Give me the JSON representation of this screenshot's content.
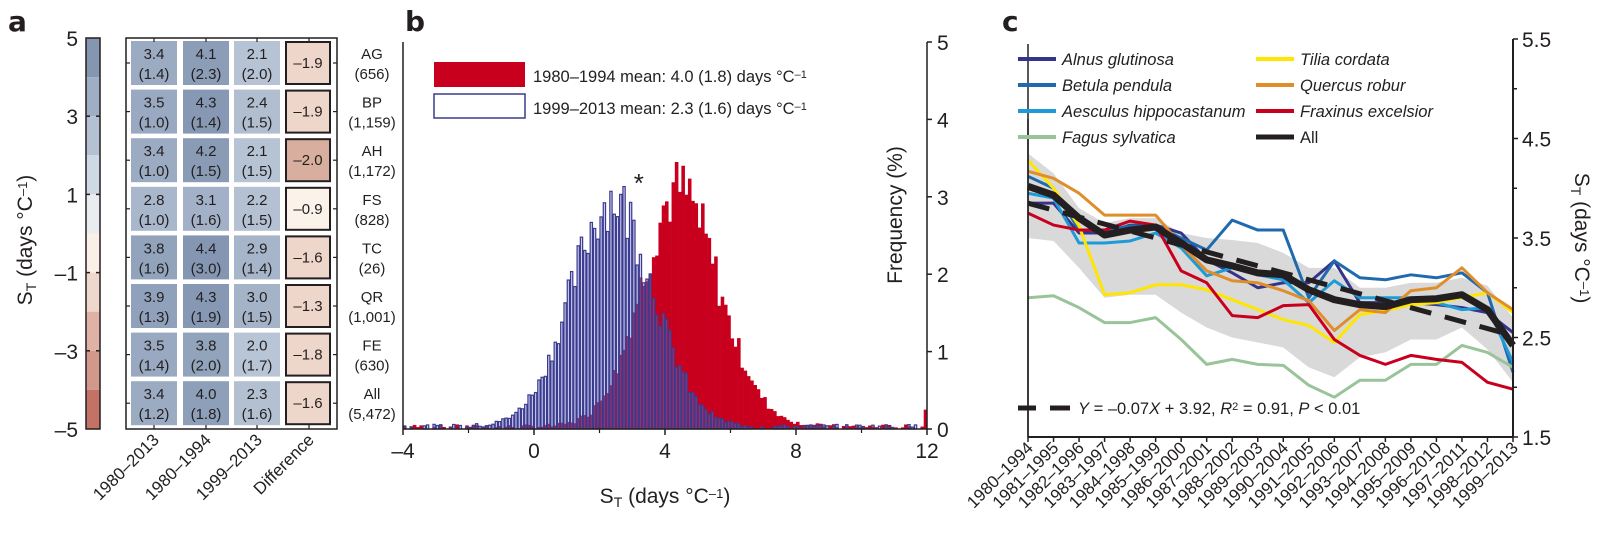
{
  "panels": {
    "a": {
      "label": "a"
    },
    "b": {
      "label": "b"
    },
    "c": {
      "label": "c"
    }
  },
  "chart_data": [
    {
      "type": "heatmap",
      "panel": "a",
      "ylabel": "S_T (days °C⁻¹)",
      "colorbar": {
        "ticks": [
          "5",
          "3",
          "1",
          "–1",
          "–3",
          "–5"
        ],
        "range": [
          -5,
          5
        ],
        "bands": [
          {
            "from": 4,
            "to": 5,
            "color": "#8596b0"
          },
          {
            "from": 3,
            "to": 4,
            "color": "#9eaec5"
          },
          {
            "from": 2,
            "to": 3,
            "color": "#b3c1d3"
          },
          {
            "from": 1,
            "to": 2,
            "color": "#cfd9e5"
          },
          {
            "from": 0,
            "to": 1,
            "color": "#e9edf0"
          },
          {
            "from": -1,
            "to": 0,
            "color": "#faf0e8"
          },
          {
            "from": -2,
            "to": -1,
            "color": "#eed7cc"
          },
          {
            "from": -3,
            "to": -2,
            "color": "#dfb2a5"
          },
          {
            "from": -4,
            "to": -3,
            "color": "#d1988b"
          },
          {
            "from": -5,
            "to": -4,
            "color": "#c27365"
          }
        ]
      },
      "columns": [
        "1980–2013",
        "1980–1994",
        "1999–2013",
        "Difference"
      ],
      "rows": [
        {
          "code": "AG",
          "n": "(656)",
          "values": [
            [
              "3.4",
              "(1.4)"
            ],
            [
              "4.1",
              "(2.3)"
            ],
            [
              "2.1",
              "(2.0)"
            ]
          ],
          "difference": "–1.9",
          "v": [
            3.4,
            4.1,
            2.1,
            -1.9
          ]
        },
        {
          "code": "BP",
          "n": "(1,159)",
          "values": [
            [
              "3.5",
              "(1.0)"
            ],
            [
              "4.3",
              "(1.4)"
            ],
            [
              "2.4",
              "(1.5)"
            ]
          ],
          "difference": "–1.9",
          "v": [
            3.5,
            4.3,
            2.4,
            -1.9
          ]
        },
        {
          "code": "AH",
          "n": "(1,172)",
          "values": [
            [
              "3.4",
              "(1.0)"
            ],
            [
              "4.2",
              "(1.5)"
            ],
            [
              "2.1",
              "(1.5)"
            ]
          ],
          "difference": "–2.0",
          "v": [
            3.4,
            4.2,
            2.1,
            -2.0
          ]
        },
        {
          "code": "FS",
          "n": "(828)",
          "values": [
            [
              "2.8",
              "(1.0)"
            ],
            [
              "3.1",
              "(1.6)"
            ],
            [
              "2.2",
              "(1.5)"
            ]
          ],
          "difference": "–0.9",
          "v": [
            2.8,
            3.1,
            2.2,
            -0.9
          ]
        },
        {
          "code": "TC",
          "n": "(26)",
          "values": [
            [
              "3.8",
              "(1.6)"
            ],
            [
              "4.4",
              "(3.0)"
            ],
            [
              "2.9",
              "(1.4)"
            ]
          ],
          "difference": "–1.6",
          "v": [
            3.8,
            4.4,
            2.9,
            -1.6
          ]
        },
        {
          "code": "QR",
          "n": "(1,001)",
          "values": [
            [
              "3.9",
              "(1.3)"
            ],
            [
              "4.3",
              "(1.9)"
            ],
            [
              "3.0",
              "(1.5)"
            ]
          ],
          "difference": "–1.3",
          "v": [
            3.9,
            4.3,
            3.0,
            -1.3
          ]
        },
        {
          "code": "FE",
          "n": "(630)",
          "values": [
            [
              "3.5",
              "(1.4)"
            ],
            [
              "3.8",
              "(2.0)"
            ],
            [
              "2.0",
              "(1.7)"
            ]
          ],
          "difference": "–1.8",
          "v": [
            3.5,
            3.8,
            2.0,
            -1.8
          ]
        },
        {
          "code": "All",
          "n": "(5,472)",
          "values": [
            [
              "3.4",
              "(1.2)"
            ],
            [
              "4.0",
              "(1.8)"
            ],
            [
              "2.3",
              "(1.6)"
            ]
          ],
          "difference": "–1.6",
          "v": [
            3.4,
            4.0,
            2.3,
            -1.6
          ]
        }
      ]
    },
    {
      "type": "bar",
      "subtype": "histogram",
      "panel": "b",
      "xlabel": "S_T (days °C⁻¹)",
      "ylabel": "Frequency (%)",
      "xlim": [
        -4,
        12
      ],
      "ylim": [
        0,
        5
      ],
      "xticks": [
        "–4",
        "0",
        "4",
        "8",
        "12"
      ],
      "yticks": [
        "0",
        "1",
        "2",
        "3",
        "4",
        "5"
      ],
      "annotation": "*",
      "annotation_x": 3.2,
      "bin_width": 0.1,
      "series": [
        {
          "name": "1980–1994 mean: 4.0 (1.8) days °C⁻¹",
          "legend_main": "1980–1994 mean: 4.0 (1.8) days °C",
          "color": "#c8001e",
          "style": "filled",
          "mean": 4.0,
          "sd": 1.8,
          "peak": 3.0
        },
        {
          "name": "1999–2013 mean: 2.3 (1.6) days °C⁻¹",
          "legend_main": "1999–2013 mean: 2.3 (1.6) days °C",
          "color": "#3a3b8c",
          "style": "outline",
          "mean": 2.3,
          "sd": 1.6,
          "peak": 2.95
        }
      ],
      "legend_sup": "–1",
      "legend_position": "top-left"
    },
    {
      "type": "line",
      "panel": "c",
      "ylabel": "S_T (days °C⁻¹)",
      "ylim": [
        1.5,
        5.5
      ],
      "yticks": [
        "1.5",
        "2.5",
        "3.5",
        "4.5",
        "5.5"
      ],
      "x": [
        "1980–1994",
        "1981–1995",
        "1982–1996",
        "1983–1997",
        "1984–1998",
        "1985–1999",
        "1986–2000",
        "1987–2001",
        "1988–2002",
        "1989–2003",
        "1990–2004",
        "1991–2005",
        "1992–2006",
        "1993–2007",
        "1994–2008",
        "1995–2009",
        "1996–2010",
        "1997–2011",
        "1998–2012",
        "1999–2013"
      ],
      "series": [
        {
          "name": "Alnus glutinosa",
          "color": "#35338a",
          "values": [
            3.85,
            3.85,
            3.55,
            3.55,
            3.63,
            3.63,
            3.55,
            3.28,
            3.15,
            3.0,
            3.05,
            3.05,
            3.27,
            2.85,
            2.85,
            2.85,
            2.83,
            2.8,
            2.75,
            2.55
          ]
        },
        {
          "name": "Betula pendula",
          "color": "#1f6aae",
          "values": [
            4.12,
            4.0,
            3.58,
            3.58,
            3.62,
            3.62,
            3.5,
            3.38,
            3.68,
            3.58,
            3.58,
            2.9,
            3.27,
            3.1,
            3.08,
            3.13,
            3.1,
            3.15,
            2.95,
            2.15
          ]
        },
        {
          "name": "Aesculus hippocastanum",
          "color": "#1e9ad6",
          "values": [
            3.95,
            3.9,
            3.45,
            3.45,
            3.47,
            3.55,
            3.4,
            3.12,
            3.2,
            3.13,
            3.08,
            2.85,
            3.07,
            2.9,
            2.9,
            2.9,
            2.85,
            2.78,
            2.8,
            2.25
          ]
        },
        {
          "name": "Fagus sylvatica",
          "color": "#99c49a",
          "values": [
            2.9,
            2.92,
            2.8,
            2.65,
            2.65,
            2.7,
            2.48,
            2.23,
            2.28,
            2.23,
            2.22,
            2.02,
            1.9,
            2.07,
            2.07,
            2.23,
            2.23,
            2.42,
            2.35,
            2.2
          ]
        },
        {
          "name": "Tilia cordata",
          "color": "#ffe600",
          "values": [
            4.28,
            4.0,
            3.62,
            2.93,
            2.95,
            3.03,
            3.03,
            2.98,
            2.88,
            2.78,
            2.68,
            2.62,
            2.45,
            2.73,
            2.77,
            2.83,
            2.85,
            2.9,
            2.95,
            2.75
          ]
        },
        {
          "name": "Quercus robur",
          "color": "#df8e2a",
          "values": [
            4.17,
            4.1,
            3.95,
            3.73,
            3.73,
            3.73,
            3.43,
            3.17,
            3.07,
            3.05,
            2.97,
            2.87,
            2.57,
            2.78,
            2.75,
            2.97,
            3.0,
            3.2,
            2.95,
            2.78
          ]
        },
        {
          "name": "Fraxinus excelsior",
          "color": "#c8001e",
          "values": [
            3.75,
            3.63,
            3.58,
            3.58,
            3.67,
            3.63,
            3.17,
            3.05,
            2.72,
            2.7,
            2.82,
            2.83,
            2.48,
            2.32,
            2.23,
            2.32,
            2.28,
            2.25,
            2.05,
            1.98
          ]
        },
        {
          "name": "All",
          "color": "#231f20",
          "values": [
            4.02,
            3.93,
            3.7,
            3.53,
            3.58,
            3.61,
            3.45,
            3.28,
            3.22,
            3.15,
            3.13,
            2.98,
            2.88,
            2.83,
            2.81,
            2.88,
            2.89,
            2.93,
            2.78,
            2.42
          ]
        }
      ],
      "band": {
        "name": "range",
        "color": "#d9d9da",
        "upper": [
          4.35,
          4.15,
          3.8,
          3.65,
          3.7,
          3.7,
          3.55,
          3.5,
          3.48,
          3.45,
          3.35,
          3.2,
          3.2,
          3.0,
          3.0,
          3.05,
          3.05,
          3.1,
          3.02,
          2.7
        ],
        "lower": [
          3.5,
          3.47,
          3.2,
          2.9,
          2.93,
          2.93,
          2.75,
          2.6,
          2.5,
          2.45,
          2.4,
          2.2,
          2.1,
          2.3,
          2.35,
          2.48,
          2.48,
          2.6,
          2.38,
          2.05
        ]
      },
      "trend": {
        "slope": -0.07,
        "intercept": 3.92,
        "label_parts": [
          "Y",
          " = –0.07",
          "X",
          " + 3.92, ",
          "R",
          "2",
          " = 0.91, ",
          "P",
          " < 0.01"
        ]
      },
      "legend_position": "top"
    }
  ]
}
